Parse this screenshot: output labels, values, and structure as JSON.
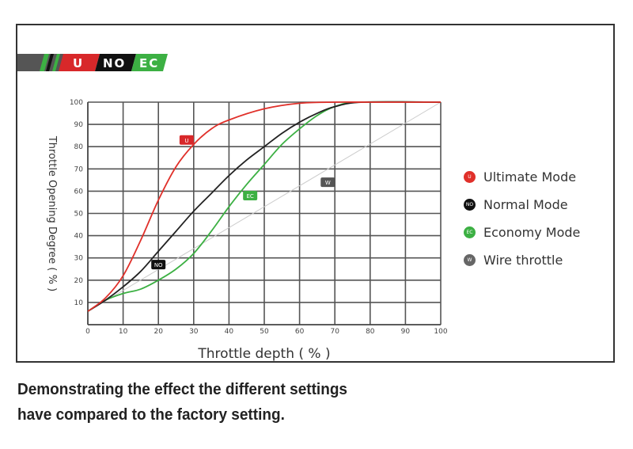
{
  "banner": {
    "labels": [
      "U",
      "NO",
      "EC"
    ]
  },
  "caption": [
    "Demonstrating the effect the different settings",
    "have compared to the factory setting."
  ],
  "chart_data": {
    "type": "line",
    "xlabel": "Throttle depth ( % )",
    "ylabel": "Throttle Opening Degree ( % )",
    "xlim": [
      0,
      100
    ],
    "ylim": [
      0,
      100
    ],
    "xticks": [
      0,
      10,
      20,
      30,
      40,
      50,
      60,
      70,
      80,
      90,
      100
    ],
    "yticks": [
      10,
      20,
      30,
      40,
      50,
      60,
      70,
      80,
      90,
      100
    ],
    "grid": true,
    "legend_position": "right",
    "series": [
      {
        "name": "Ultimate Mode",
        "badge": "U",
        "color": "#e0302a",
        "x": [
          0,
          5,
          10,
          15,
          20,
          25,
          30,
          35,
          40,
          50,
          60,
          70,
          80,
          100
        ],
        "y": [
          6,
          12,
          22,
          38,
          56,
          71,
          81,
          88,
          92,
          97,
          99.5,
          100,
          100,
          100
        ],
        "badge_at": [
          28,
          83
        ]
      },
      {
        "name": "Normal Mode",
        "badge": "NO",
        "color": "#222222",
        "x": [
          0,
          5,
          10,
          15,
          20,
          25,
          30,
          35,
          40,
          45,
          50,
          55,
          60,
          65,
          70,
          78,
          100
        ],
        "y": [
          6,
          11,
          17,
          24,
          33,
          42,
          51,
          59,
          67,
          74,
          80,
          86,
          91,
          95,
          98,
          100,
          100
        ],
        "badge_at": [
          20,
          27
        ]
      },
      {
        "name": "Economy Mode",
        "badge": "EC",
        "color": "#3cb043",
        "x": [
          0,
          5,
          10,
          15,
          20,
          25,
          30,
          35,
          40,
          45,
          50,
          55,
          60,
          65,
          70,
          77,
          100
        ],
        "y": [
          6,
          11,
          14,
          16,
          20,
          25,
          32,
          42,
          53,
          63,
          72,
          81,
          88,
          94,
          98,
          100,
          100
        ],
        "badge_at": [
          46,
          58
        ]
      },
      {
        "name": "Wire throttle",
        "badge": "W",
        "color": "#cccccc",
        "x": [
          0,
          100
        ],
        "y": [
          6,
          100
        ],
        "badge_at": [
          68,
          64
        ]
      }
    ],
    "legend_marker_colors": [
      "#e0302a",
      "#111111",
      "#3cb043",
      "#666666"
    ]
  }
}
